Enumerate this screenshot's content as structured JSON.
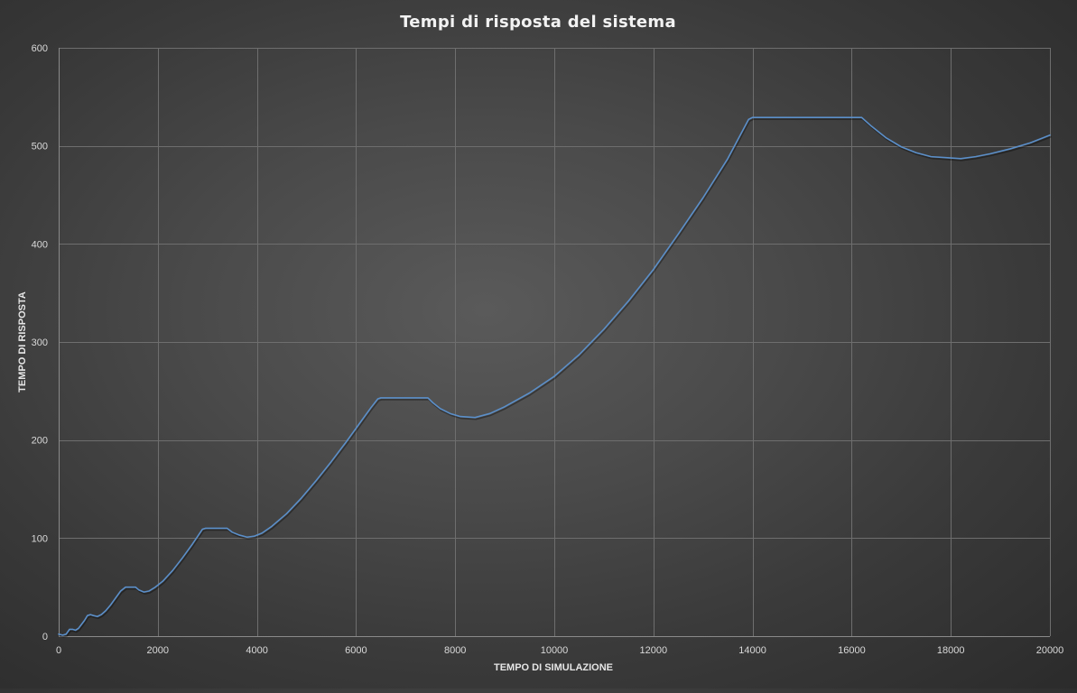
{
  "colors": {
    "series": "#5b8fc9"
  },
  "chart_data": {
    "type": "line",
    "title": "Tempi  di  risposta  del  sistema",
    "xlabel": "TEMPO DI SIMULAZIONE",
    "ylabel": "TEMPO DI RISPOSTA",
    "xlim": [
      0,
      20000
    ],
    "ylim": [
      0,
      600
    ],
    "xticks": [
      0,
      2000,
      4000,
      6000,
      8000,
      10000,
      12000,
      14000,
      16000,
      18000,
      20000
    ],
    "yticks": [
      0,
      100,
      200,
      300,
      400,
      500,
      600
    ],
    "xtick_labels": [
      "0",
      "2000",
      "4000",
      "6000",
      "8000",
      "10000",
      "12000",
      "14000",
      "16000",
      "18000",
      "20000"
    ],
    "ytick_labels": [
      "0",
      "100",
      "200",
      "300",
      "400",
      "500",
      "600"
    ],
    "grid": true,
    "legend": "none",
    "series": [
      {
        "values": [
          [
            0,
            2
          ],
          [
            80,
            1
          ],
          [
            150,
            2
          ],
          [
            220,
            7
          ],
          [
            280,
            7
          ],
          [
            340,
            6
          ],
          [
            400,
            8
          ],
          [
            460,
            12
          ],
          [
            520,
            16
          ],
          [
            580,
            21
          ],
          [
            640,
            22
          ],
          [
            700,
            21
          ],
          [
            780,
            20
          ],
          [
            860,
            22
          ],
          [
            950,
            26
          ],
          [
            1050,
            32
          ],
          [
            1150,
            39
          ],
          [
            1250,
            46
          ],
          [
            1350,
            50
          ],
          [
            1400,
            50
          ],
          [
            1550,
            50
          ],
          [
            1620,
            47
          ],
          [
            1720,
            45
          ],
          [
            1820,
            46
          ],
          [
            1950,
            50
          ],
          [
            2100,
            56
          ],
          [
            2300,
            67
          ],
          [
            2500,
            80
          ],
          [
            2700,
            94
          ],
          [
            2900,
            109
          ],
          [
            2960,
            110
          ],
          [
            3100,
            110
          ],
          [
            3200,
            110
          ],
          [
            3400,
            110
          ],
          [
            3500,
            106
          ],
          [
            3650,
            103
          ],
          [
            3800,
            101
          ],
          [
            3950,
            102
          ],
          [
            4100,
            105
          ],
          [
            4300,
            112
          ],
          [
            4600,
            125
          ],
          [
            4900,
            141
          ],
          [
            5200,
            159
          ],
          [
            5500,
            178
          ],
          [
            5800,
            198
          ],
          [
            6100,
            219
          ],
          [
            6300,
            233
          ],
          [
            6440,
            242
          ],
          [
            6500,
            243
          ],
          [
            7000,
            243
          ],
          [
            7450,
            243
          ],
          [
            7550,
            238
          ],
          [
            7700,
            232
          ],
          [
            7900,
            227
          ],
          [
            8100,
            224
          ],
          [
            8400,
            223
          ],
          [
            8700,
            227
          ],
          [
            9000,
            234
          ],
          [
            9500,
            248
          ],
          [
            10000,
            265
          ],
          [
            10500,
            287
          ],
          [
            11000,
            313
          ],
          [
            11500,
            342
          ],
          [
            12000,
            374
          ],
          [
            12500,
            410
          ],
          [
            13000,
            447
          ],
          [
            13500,
            487
          ],
          [
            13920,
            527
          ],
          [
            14000,
            529
          ],
          [
            15000,
            529
          ],
          [
            16200,
            529
          ],
          [
            16400,
            520
          ],
          [
            16700,
            508
          ],
          [
            17000,
            499
          ],
          [
            17300,
            493
          ],
          [
            17600,
            489
          ],
          [
            17900,
            488
          ],
          [
            18200,
            487
          ],
          [
            18500,
            489
          ],
          [
            18800,
            492
          ],
          [
            19200,
            497
          ],
          [
            19600,
            503
          ],
          [
            20000,
            511
          ]
        ]
      }
    ]
  }
}
